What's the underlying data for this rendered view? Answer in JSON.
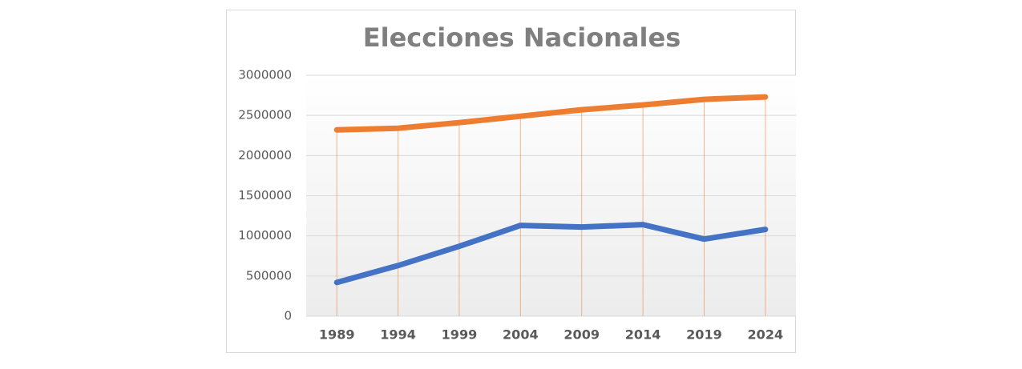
{
  "chart_data": {
    "type": "line",
    "title": "Elecciones Nacionales",
    "categories": [
      "1989",
      "1994",
      "1999",
      "2004",
      "2009",
      "2014",
      "2019",
      "2024"
    ],
    "series": [
      {
        "color": "#4472c4",
        "values": [
          420000,
          630000,
          870000,
          1130000,
          1110000,
          1140000,
          960000,
          1080000
        ]
      },
      {
        "color": "#ed7d31",
        "values": [
          2320000,
          2340000,
          2410000,
          2490000,
          2570000,
          2630000,
          2700000,
          2730000
        ],
        "drop_lines": true
      }
    ],
    "ylim": [
      0,
      3000000
    ],
    "yticks": [
      0,
      500000,
      1000000,
      1500000,
      2000000,
      2500000,
      3000000
    ],
    "grid": true
  }
}
